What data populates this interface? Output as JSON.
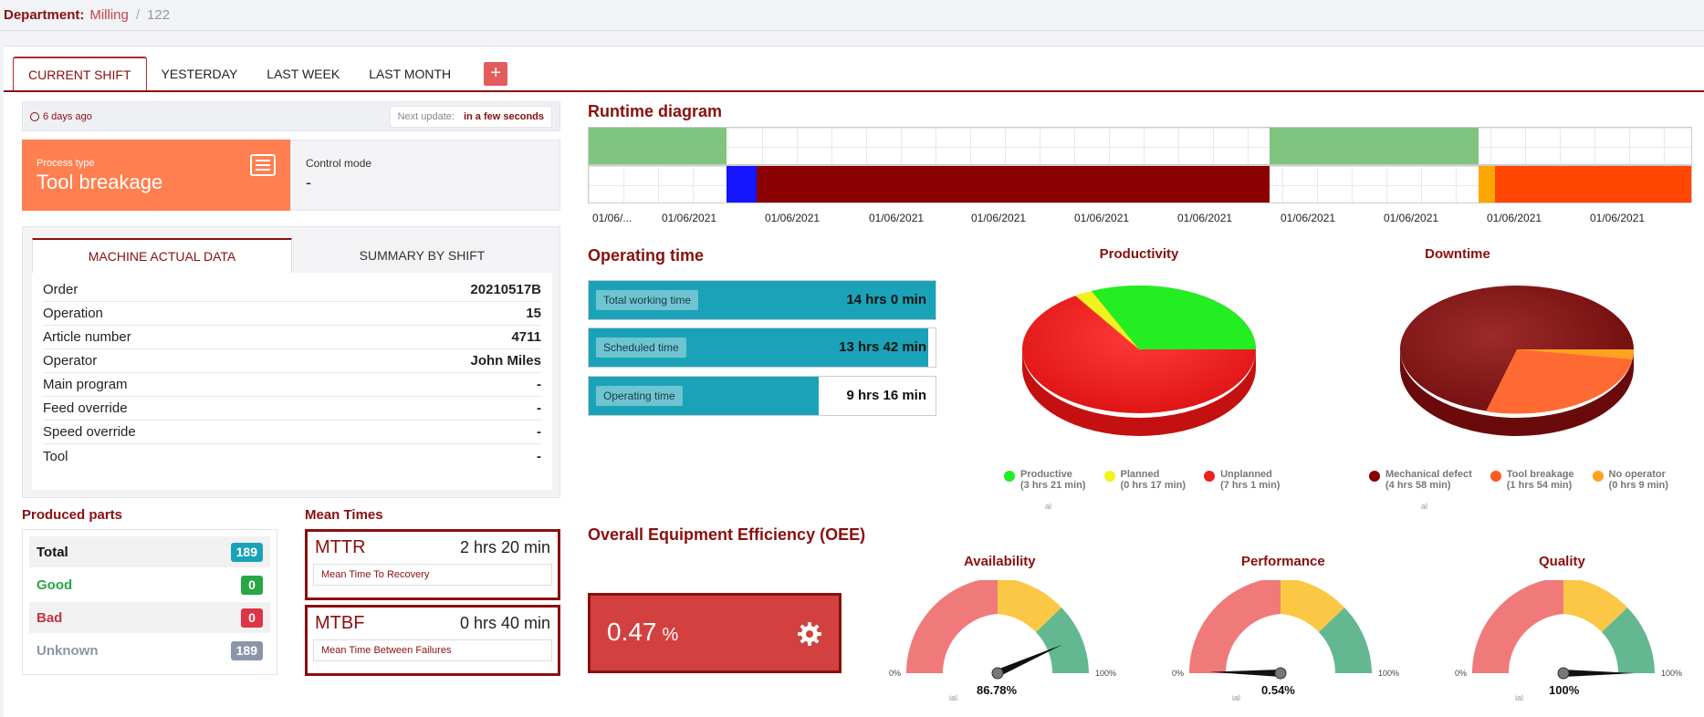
{
  "breadcrumb": {
    "label": "Department:",
    "department": "Milling",
    "separator": "/",
    "number": "122"
  },
  "tabs": [
    "CURRENT SHIFT",
    "YESTERDAY",
    "LAST WEEK",
    "LAST MONTH"
  ],
  "add_tab_label": "+",
  "status": {
    "updated": "6 days ago",
    "next_update_label": "Next update:",
    "next_update_value": "in a few seconds"
  },
  "process": {
    "label": "Process type",
    "value": "Tool breakage"
  },
  "control": {
    "label": "Control mode",
    "value": "-"
  },
  "machine_tabs": [
    "MACHINE ACTUAL DATA",
    "SUMMARY BY SHIFT"
  ],
  "machine_rows": [
    {
      "k": "Order",
      "v": "20210517B"
    },
    {
      "k": "Operation",
      "v": "15"
    },
    {
      "k": "Article number",
      "v": "4711"
    },
    {
      "k": "Operator",
      "v": "John Miles"
    },
    {
      "k": "Main program",
      "v": "-"
    },
    {
      "k": "Feed override",
      "v": "-"
    },
    {
      "k": "Speed override",
      "v": "-"
    },
    {
      "k": "Tool",
      "v": "-"
    }
  ],
  "produced": {
    "title": "Produced parts",
    "rows": [
      {
        "label": "Total",
        "value": "189",
        "color": "#1aa3b8",
        "text_color": "#111"
      },
      {
        "label": "Good",
        "value": "0",
        "color": "#28a745",
        "text_color": "#28a745"
      },
      {
        "label": "Bad",
        "value": "0",
        "color": "#dc3545",
        "text_color": "#c0333f"
      },
      {
        "label": "Unknown",
        "value": "189",
        "color": "#8b96a8",
        "text_color": "#8b96a8"
      }
    ]
  },
  "mean_times": {
    "title": "Mean Times",
    "mttr": {
      "abbr": "MTTR",
      "time": "2 hrs 20 min",
      "desc": "Mean Time To Recovery"
    },
    "mtbf": {
      "abbr": "MTBF",
      "time": "0 hrs 40 min",
      "desc": "Mean Time Between Failures"
    }
  },
  "runtime": {
    "title": "Runtime diagram",
    "tick_labels": [
      "01/06/...",
      "01/06/2021",
      "01/06/2021",
      "01/06/2021",
      "01/06/2021",
      "01/06/2021",
      "01/06/2021",
      "01/06/2021",
      "01/06/2021",
      "01/06/2021",
      "01/06/2021"
    ],
    "colors": {
      "productive": "#7fc47f",
      "blue": "#1414ff",
      "mechanical": "#8b0000",
      "orange": "#ffa500",
      "tool": "#ff4500"
    }
  },
  "operating": {
    "title": "Operating time",
    "bars": [
      {
        "label": "Total working time",
        "value": "14 hrs 0 min",
        "fill": 1.0
      },
      {
        "label": "Scheduled time",
        "value": "13 hrs 42 min",
        "fill": 0.979
      },
      {
        "label": "Operating time",
        "value": "9 hrs 16 min",
        "fill": 0.662
      }
    ]
  },
  "productivity": {
    "title": "Productivity",
    "legend": [
      {
        "name": "Productive",
        "detail": "(3 hrs 21 min)",
        "color": "#22ee22"
      },
      {
        "name": "Planned",
        "detail": "(0 hrs 17 min)",
        "color": "#f2f21f"
      },
      {
        "name": "Unplanned",
        "detail": "(7 hrs 1 min)",
        "color": "#ee1f1f"
      }
    ],
    "tiny": "al"
  },
  "downtime": {
    "title": "Downtime",
    "legend": [
      {
        "name": "Mechanical defect",
        "detail": "(4 hrs 58 min)",
        "color": "#8b0000"
      },
      {
        "name": "Tool breakage",
        "detail": "(1 hrs 54 min)",
        "color": "#ff5a1f"
      },
      {
        "name": "No operator",
        "detail": "(0 hrs 9 min)",
        "color": "#ffa21f"
      }
    ],
    "tiny": "al"
  },
  "oee": {
    "title": "Overall Equipment Efficiency (OEE)",
    "value": "0.47",
    "unit": "%"
  },
  "gauges": [
    {
      "title": "Availability",
      "value": "86.78%",
      "fraction": 0.8678,
      "min": "0%",
      "max": "100%",
      "tiny": "ial"
    },
    {
      "title": "Performance",
      "value": "0.54%",
      "fraction": 0.0054,
      "min": "0%",
      "max": "100%",
      "tiny": "ial"
    },
    {
      "title": "Quality",
      "value": "100%",
      "fraction": 1.0,
      "min": "0%",
      "max": "100%",
      "tiny": "ial"
    }
  ]
}
